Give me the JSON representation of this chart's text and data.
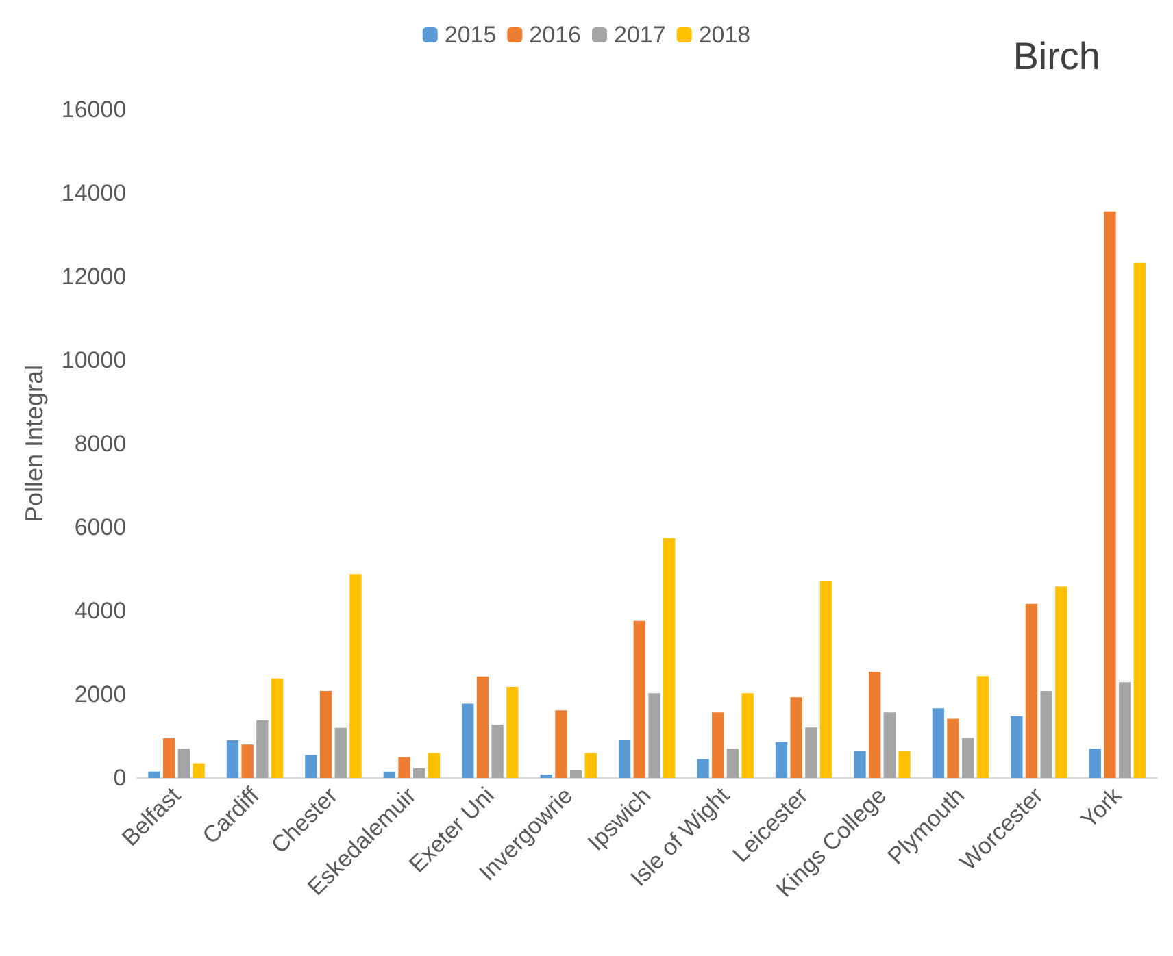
{
  "chart_data": {
    "type": "bar",
    "title": "Birch",
    "ylabel": "Pollen Integral",
    "categories": [
      "Belfast",
      "Cardiff",
      "Chester",
      "Eskedalemuir",
      "Exeter Uni",
      "Invergowrie",
      "Ipswich",
      "Isle of Wight",
      "Leicester",
      "Kings College",
      "Plymouth",
      "Worcester",
      "York"
    ],
    "series": [
      {
        "name": "2015",
        "color": "#5b9bd5",
        "values": [
          150,
          900,
          550,
          150,
          1780,
          80,
          920,
          450,
          860,
          650,
          1670,
          1480,
          700
        ]
      },
      {
        "name": "2016",
        "color": "#ed7d31",
        "values": [
          950,
          800,
          2080,
          500,
          2430,
          1620,
          3760,
          1570,
          1930,
          2540,
          1420,
          4170,
          13560
        ]
      },
      {
        "name": "2017",
        "color": "#a5a5a5",
        "values": [
          700,
          1380,
          1200,
          230,
          1280,
          180,
          2030,
          700,
          1210,
          1570,
          960,
          2080,
          2290
        ]
      },
      {
        "name": "2018",
        "color": "#ffc000",
        "values": [
          350,
          2380,
          4880,
          600,
          2180,
          600,
          5740,
          2030,
          4720,
          650,
          2440,
          4580,
          12330
        ]
      }
    ],
    "ylim": [
      0,
      16000
    ],
    "yticks": [
      0,
      2000,
      4000,
      6000,
      8000,
      10000,
      12000,
      14000,
      16000
    ],
    "grid": false,
    "legend": "top"
  }
}
